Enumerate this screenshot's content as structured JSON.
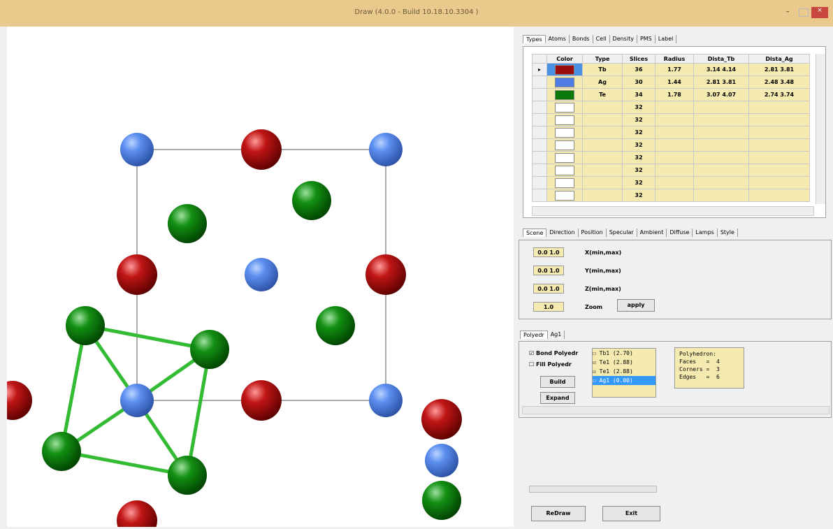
{
  "window": {
    "title": "Draw (4.0.0 - Build 10.18.10.3304 )"
  },
  "types_tabs": [
    "Types",
    "Atoms",
    "Bonds",
    "Cell",
    "Density",
    "PMS",
    "Label"
  ],
  "types_table": {
    "headers": [
      "Color",
      "Type",
      "Slices",
      "Radius",
      "Dista_Tb",
      "Dista_Ag"
    ],
    "rows": [
      {
        "type": "Tb",
        "slices": 36,
        "radius": 1.77,
        "dista_tb": "3.14 4.14",
        "dista_ag": "2.81 3.81"
      },
      {
        "type": "Ag",
        "slices": 30,
        "radius": 1.44,
        "dista_tb": "2.81 3.81",
        "dista_ag": "2.48 3.48"
      },
      {
        "type": "Te",
        "slices": 34,
        "radius": 1.78,
        "dista_tb": "3.07 4.07",
        "dista_ag": "2.74 3.74"
      },
      {
        "slices": 32
      },
      {
        "slices": 32
      },
      {
        "slices": 32
      },
      {
        "slices": 32
      },
      {
        "slices": 32
      },
      {
        "slices": 32
      },
      {
        "slices": 32
      },
      {
        "slices": 32
      }
    ]
  },
  "scene_tabs": [
    "Scene",
    "Direction",
    "Position",
    "Specular",
    "Ambient",
    "Diffuse",
    "Lamps",
    "Style"
  ],
  "scene_fields": [
    {
      "value": "0.0 1.0",
      "label": "X(min,max)"
    },
    {
      "value": "0.0 1.0",
      "label": "Y(min,max)"
    },
    {
      "value": "0.0 1.0",
      "label": "Z(min,max)"
    },
    {
      "value": "1.0",
      "label": "Zoom"
    }
  ],
  "apply_button": "apply",
  "polyedr_tabs": [
    "Polyedr",
    "Ag1"
  ],
  "polyedr": {
    "bond_polyedr": "Bond Polyedr",
    "fill_polyedr": "Fill Polyedr",
    "build": "Build",
    "expand": "Expand",
    "atoms": [
      "Tb1 (2.70)",
      "Te1 (2.88)",
      "Te1 (2.88)",
      "Ag1 (0.00)"
    ],
    "info": [
      "Polyhedron:",
      "Faces   =  4",
      "Corners =  3",
      "Edges   =  6"
    ]
  },
  "buttons": {
    "redraw": "ReDraw",
    "exit": "Exit"
  }
}
